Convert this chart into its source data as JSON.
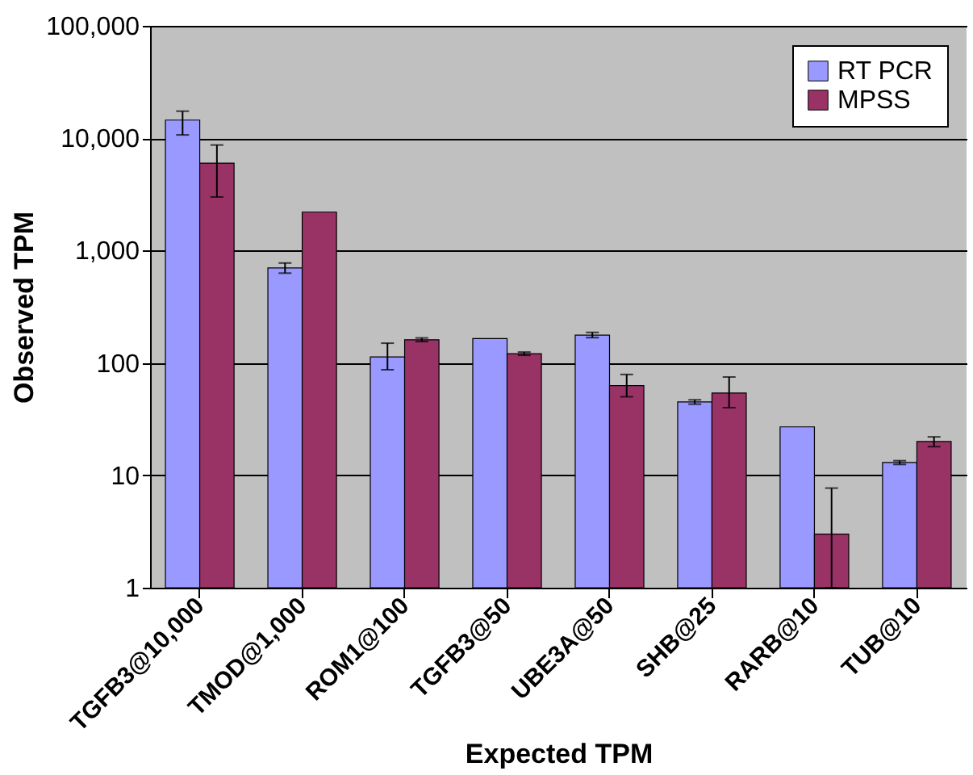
{
  "chart_data": {
    "type": "bar",
    "xlabel": "Expected TPM",
    "ylabel": "Observed TPM",
    "categories": [
      "TGFB3@10,000",
      "TMOD@1,000",
      "ROM1@100",
      "TGFB3@50",
      "UBE3A@50",
      "SHB@25",
      "RARB@10",
      "TUB@10"
    ],
    "series": [
      {
        "name": "RT PCR",
        "color": "#9999ff",
        "values": [
          14500,
          700,
          113,
          165,
          177,
          45,
          27,
          13
        ],
        "errors": [
          [
            10700,
            17400
          ],
          [
            630,
            775
          ],
          [
            87,
            150
          ],
          null,
          [
            168,
            187
          ],
          [
            43,
            47
          ],
          null,
          [
            12.5,
            13.5
          ]
        ]
      },
      {
        "name": "MPSS",
        "color": "#993366",
        "values": [
          6000,
          2200,
          161,
          121,
          63,
          54,
          3,
          20
        ],
        "errors": [
          [
            3000,
            8700
          ],
          null,
          [
            155,
            167
          ],
          [
            117,
            125
          ],
          [
            50,
            79
          ],
          [
            40,
            75
          ],
          [
            1,
            7.7
          ],
          [
            18,
            22
          ]
        ]
      }
    ],
    "log": true,
    "ylim": [
      1,
      100000
    ],
    "yticks": [
      1,
      10,
      100,
      {
        "value": 1000,
        "label": "1,000"
      },
      {
        "value": 10000,
        "label": "10,000"
      },
      {
        "value": 100000,
        "label": "100,000"
      }
    ],
    "grid": "y",
    "legend": "top right"
  }
}
